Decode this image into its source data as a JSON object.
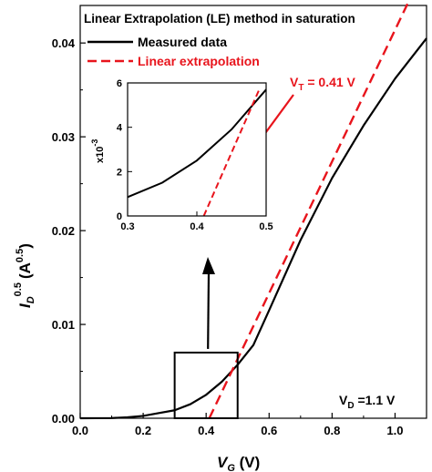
{
  "chart_data": {
    "type": "line",
    "x_axis": {
      "label_main": "V",
      "label_sub": "G",
      "label_unit": " (V)",
      "range": [
        0,
        1.1
      ],
      "ticks": [
        "0.0",
        "0.2",
        "0.4",
        "0.6",
        "0.8",
        "1.0"
      ]
    },
    "y_axis": {
      "label_main": "I",
      "label_sub": "D",
      "label_sup": "0.5",
      "label_unit": "(A",
      "label_unit_sup": "0.5",
      "label_close": ")",
      "range": [
        0,
        0.044
      ],
      "ticks": [
        "0.00",
        "0.01",
        "0.02",
        "0.03",
        "0.04"
      ]
    },
    "legend": {
      "title": "Linear Extrapolation (LE) method in saturation",
      "placement": "top-left",
      "entries": [
        {
          "label": "Measured data",
          "color": "#000000",
          "style": "solid"
        },
        {
          "label": "Linear extrapolation",
          "color": "#e8141c",
          "style": "dashed"
        }
      ]
    },
    "series": [
      {
        "name": "Measured data",
        "color": "#000000",
        "x": [
          0.0,
          0.1,
          0.15,
          0.2,
          0.25,
          0.3,
          0.35,
          0.4,
          0.45,
          0.5,
          0.55,
          0.6,
          0.7,
          0.8,
          0.9,
          1.0,
          1.1
        ],
        "y": [
          0.0,
          2e-05,
          0.0001,
          0.00025,
          0.00055,
          0.00085,
          0.0015,
          0.0025,
          0.0039,
          0.0057,
          0.0078,
          0.0115,
          0.019,
          0.0256,
          0.0312,
          0.0362,
          0.0405
        ]
      },
      {
        "name": "Linear extrapolation",
        "color": "#e8141c",
        "x": [
          0.41,
          1.04
        ],
        "y": [
          0.0,
          0.0442
        ]
      }
    ],
    "annotations": {
      "vt_main": "V",
      "vt_sub": "T",
      "vt_text": " = 0.41 V",
      "vd_main": "V",
      "vd_sub": "D",
      "vd_text": " =1.1 V",
      "zoom_box": {
        "x": [
          0.3,
          0.5
        ],
        "y": [
          0,
          0.007
        ]
      }
    },
    "inset": {
      "x_range": [
        0.3,
        0.5
      ],
      "y_range": [
        0,
        6
      ],
      "x_ticks": [
        "0.3",
        "0.4",
        "0.5"
      ],
      "y_ticks": [
        "0",
        "2",
        "4",
        "6"
      ],
      "y_label_base": "x10",
      "y_label_exp": "-3",
      "series": [
        {
          "color": "#000000",
          "x": [
            0.3,
            0.35,
            0.4,
            0.45,
            0.5
          ],
          "y": [
            0.85,
            1.5,
            2.5,
            3.9,
            5.7
          ]
        },
        {
          "color": "#e8141c",
          "x": [
            0.41,
            0.49
          ],
          "y": [
            0.0,
            5.7
          ]
        }
      ]
    }
  }
}
